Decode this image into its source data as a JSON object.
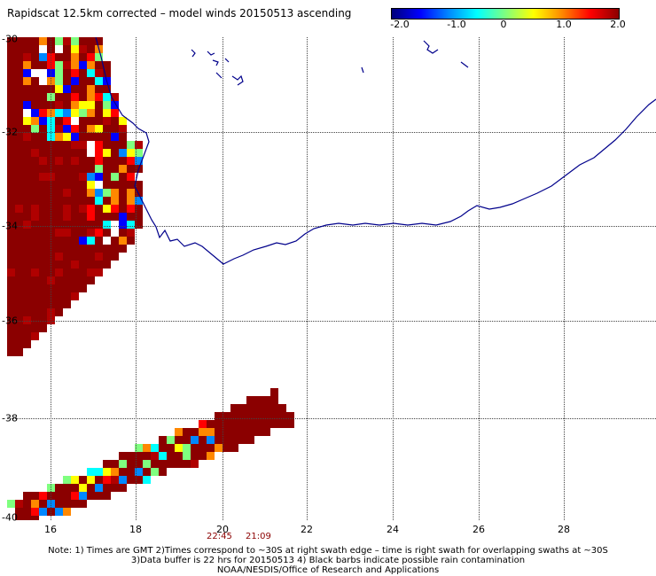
{
  "title": "Rapidscat 12.5km corrected – model winds 20150513 ascending",
  "colorbar": {
    "ticks": [
      "-2.0",
      "-1.0",
      "0",
      "1.0",
      "2.0"
    ],
    "stops": [
      "#00007a",
      "#0000ff",
      "#0088ff",
      "#00ffff",
      "#7fff7f",
      "#ffff00",
      "#ff8800",
      "#ff0000",
      "#8b0000"
    ]
  },
  "map": {
    "lat_labels": [
      "-30",
      "-32",
      "-34",
      "-36",
      "-38",
      "-40"
    ],
    "lon_labels": [
      "16",
      "18",
      "20",
      "22",
      "24",
      "26",
      "28"
    ],
    "coastline_color": "#00008b",
    "grid": "dotted"
  },
  "times": [
    "22:45",
    "21:09"
  ],
  "notes": [
    "Note: 1) Times are GMT 2)Times correspond to ~30S at right swath edge – time is right swath for overlapping swaths at ~30S",
    "3)Data buffer is 22 hrs for 20150513 4) Black barbs indicate possible rain contamination",
    "NOAA/NESDIS/Office of Research and Applications"
  ]
}
